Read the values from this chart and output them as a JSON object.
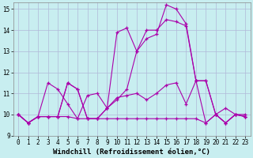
{
  "xlabel": "Windchill (Refroidissement éolien,°C)",
  "xlim": [
    -0.5,
    23.5
  ],
  "ylim": [
    9,
    15.3
  ],
  "yticks": [
    9,
    10,
    11,
    12,
    13,
    14,
    15
  ],
  "xticks": [
    0,
    1,
    2,
    3,
    4,
    5,
    6,
    7,
    8,
    9,
    10,
    11,
    12,
    13,
    14,
    15,
    16,
    17,
    18,
    19,
    20,
    21,
    22,
    23
  ],
  "bg_color": "#c8eef0",
  "grid_color": "#b0b8d8",
  "line_color": "#aa00aa",
  "line1_x": [
    0,
    1,
    2,
    3,
    4,
    5,
    6,
    7,
    8,
    9,
    10,
    11,
    12,
    13,
    14,
    15,
    16,
    17,
    18,
    19,
    20,
    21,
    22,
    23
  ],
  "line1_y": [
    10.0,
    9.6,
    9.9,
    11.5,
    11.2,
    10.5,
    9.8,
    10.9,
    11.0,
    10.3,
    10.8,
    10.9,
    11.0,
    10.7,
    11.0,
    11.4,
    11.5,
    10.5,
    11.6,
    9.6,
    10.0,
    10.3,
    10.0,
    10.0
  ],
  "line2_x": [
    0,
    1,
    2,
    3,
    4,
    5,
    6,
    7,
    8,
    9,
    10,
    11,
    12,
    13,
    14,
    15,
    16,
    17,
    18,
    19,
    20,
    21,
    22,
    23
  ],
  "line2_y": [
    10.0,
    9.6,
    9.9,
    9.9,
    9.9,
    11.5,
    11.2,
    9.8,
    9.8,
    10.3,
    13.9,
    14.1,
    13.0,
    13.6,
    13.8,
    15.2,
    15.0,
    14.3,
    11.6,
    11.6,
    10.0,
    9.6,
    10.0,
    9.9
  ],
  "line3_x": [
    0,
    1,
    2,
    3,
    4,
    5,
    6,
    7,
    8,
    9,
    10,
    11,
    12,
    13,
    14,
    15,
    16,
    17,
    18,
    19,
    20,
    21,
    22,
    23
  ],
  "line3_y": [
    10.0,
    9.6,
    9.9,
    9.9,
    9.9,
    11.5,
    11.2,
    9.8,
    9.8,
    10.3,
    10.7,
    11.2,
    13.0,
    14.0,
    14.0,
    14.5,
    14.4,
    14.2,
    11.6,
    11.6,
    10.0,
    9.6,
    10.0,
    9.9
  ],
  "line4_x": [
    0,
    1,
    2,
    3,
    4,
    5,
    6,
    7,
    8,
    9,
    10,
    11,
    12,
    13,
    14,
    15,
    16,
    17,
    18,
    19,
    20,
    21,
    22,
    23
  ],
  "line4_y": [
    10.0,
    9.6,
    9.9,
    9.9,
    9.9,
    9.9,
    9.8,
    9.8,
    9.8,
    9.8,
    9.8,
    9.8,
    9.8,
    9.8,
    9.8,
    9.8,
    9.8,
    9.8,
    9.8,
    9.6,
    10.0,
    9.6,
    10.0,
    9.9
  ],
  "xlabel_fontsize": 6.5,
  "tick_fontsize": 5.5,
  "linewidth": 0.8,
  "markersize": 3.0
}
